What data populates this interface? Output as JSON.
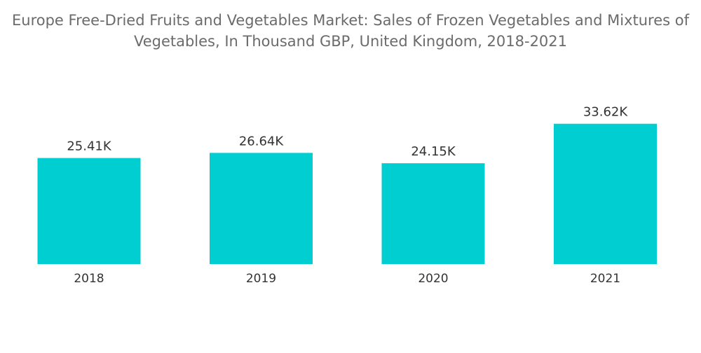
{
  "chart_data": {
    "type": "bar",
    "title_lines": [
      "Europe Free-Dried Fruits and Vegetables Market: Sales of Frozen Vegetables and Mixtures of",
      "Vegetables, In Thousand GBP, United Kingdom, 2018-2021"
    ],
    "categories": [
      "2018",
      "2019",
      "2020",
      "2021"
    ],
    "values": [
      25.41,
      26.64,
      24.15,
      33.62
    ],
    "data_labels": [
      "25.41K",
      "26.64K",
      "24.15K",
      "33.62K"
    ],
    "xlabel": "",
    "ylabel": "",
    "ylim": [
      0,
      35
    ],
    "grid": false,
    "legend": "none",
    "bar_color": "#00CED1"
  }
}
